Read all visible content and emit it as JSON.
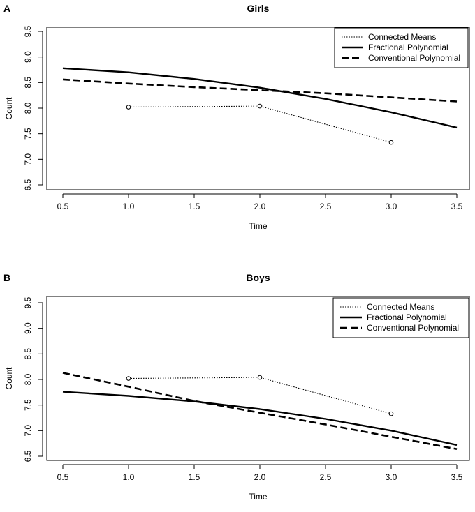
{
  "panels": [
    {
      "letter": "A",
      "chart_data": {
        "type": "line",
        "title": "Girls",
        "xlabel": "Time",
        "ylabel": "Count",
        "xlim": [
          0.5,
          3.5
        ],
        "ylim": [
          6.5,
          9.5
        ],
        "xticks": [
          0.5,
          1.0,
          1.5,
          2.0,
          2.5,
          3.0,
          3.5
        ],
        "xtick_labels": [
          "0.5",
          "1.0",
          "1.5",
          "2.0",
          "2.5",
          "3.0",
          "3.5"
        ],
        "yticks": [
          6.5,
          7.0,
          7.5,
          8.0,
          8.5,
          9.0,
          9.5
        ],
        "ytick_labels": [
          "6.5",
          "7.0",
          "7.5",
          "8.0",
          "8.5",
          "9.0",
          "9.5"
        ],
        "legend": "top-right",
        "series": [
          {
            "name": "Connected Means",
            "style": "dotted",
            "markers": true,
            "x": [
              1.0,
              2.0,
              3.0
            ],
            "values": [
              8.02,
              8.04,
              7.33
            ]
          },
          {
            "name": "Fractional Polynomial",
            "style": "solid",
            "markers": false,
            "x": [
              0.5,
              1.0,
              1.5,
              2.0,
              2.5,
              3.0,
              3.5
            ],
            "values": [
              8.78,
              8.7,
              8.57,
              8.4,
              8.18,
              7.92,
              7.62
            ]
          },
          {
            "name": "Conventional Polynomial",
            "style": "dashed",
            "markers": false,
            "x": [
              0.5,
              1.0,
              1.5,
              2.0,
              2.5,
              3.0,
              3.5
            ],
            "values": [
              8.56,
              8.48,
              8.41,
              8.35,
              8.29,
              8.21,
              8.13
            ]
          }
        ]
      }
    },
    {
      "letter": "B",
      "chart_data": {
        "type": "line",
        "title": "Boys",
        "xlabel": "Time",
        "ylabel": "Count",
        "xlim": [
          0.5,
          3.5
        ],
        "ylim": [
          6.5,
          9.5
        ],
        "xticks": [
          0.5,
          1.0,
          1.5,
          2.0,
          2.5,
          3.0,
          3.5
        ],
        "xtick_labels": [
          "0.5",
          "1.0",
          "1.5",
          "2.0",
          "2.5",
          "3.0",
          "3.5"
        ],
        "yticks": [
          6.5,
          7.0,
          7.5,
          8.0,
          8.5,
          9.0,
          9.5
        ],
        "ytick_labels": [
          "6.5",
          "7.0",
          "7.5",
          "8.0",
          "8.5",
          "9.0",
          "9.5"
        ],
        "legend": "top-right",
        "series": [
          {
            "name": "Connected Means",
            "style": "dotted",
            "markers": true,
            "x": [
              1.0,
              2.0,
              3.0
            ],
            "values": [
              8.02,
              8.04,
              7.33
            ]
          },
          {
            "name": "Fractional Polynomial",
            "style": "solid",
            "markers": false,
            "x": [
              0.5,
              1.0,
              1.5,
              2.0,
              2.5,
              3.0,
              3.5
            ],
            "values": [
              7.76,
              7.68,
              7.57,
              7.42,
              7.23,
              7.0,
              6.72
            ]
          },
          {
            "name": "Conventional Polynomial",
            "style": "dashed",
            "markers": false,
            "x": [
              0.5,
              1.0,
              1.5,
              2.0,
              2.5,
              3.0,
              3.5
            ],
            "values": [
              8.13,
              7.86,
              7.58,
              7.35,
              7.12,
              6.88,
              6.64
            ]
          }
        ]
      }
    }
  ]
}
